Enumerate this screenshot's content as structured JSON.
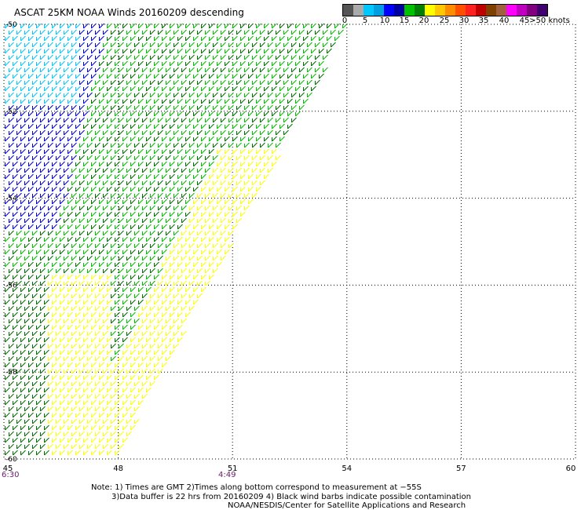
{
  "title": "ASCAT 25KM NOAA Winds 20160209 descending",
  "legend": {
    "colors": [
      "#555555",
      "#aaaaaa",
      "#00c8ff",
      "#00a0e0",
      "#0000ff",
      "#0000a0",
      "#00c000",
      "#008000",
      "#ffff00",
      "#ffc800",
      "#ff8c00",
      "#ff5000",
      "#ff2020",
      "#c00000",
      "#804000",
      "#a06040",
      "#ff00ff",
      "#c000c0",
      "#800080",
      "#400070"
    ],
    "ticks": [
      "0",
      "5",
      "10",
      "15",
      "20",
      "25",
      "30",
      "35",
      "40",
      "45",
      ">50 knots"
    ]
  },
  "lat_labels": [
    "-50",
    "-52",
    "-54",
    "-56",
    "-58",
    "-60"
  ],
  "lon_labels": [
    "45",
    "48",
    "51",
    "54",
    "57",
    "60"
  ],
  "times": [
    "6:30",
    "4:49"
  ],
  "notes": [
    "Note: 1) Times are GMT 2)Times along bottom correspond to measurement at −55S",
    "3)Data buffer is 22 hrs from 20160209 4) Black wind barbs indicate possible contamination",
    "NOAA/NESDIS/Center for Satellite Applications and Research"
  ],
  "wind_colors": {
    "cyan": "#00c8ff",
    "blue": "#0000e0",
    "green": "#00c000",
    "darkgreen": "#007000",
    "yellow": "#ffff00"
  }
}
